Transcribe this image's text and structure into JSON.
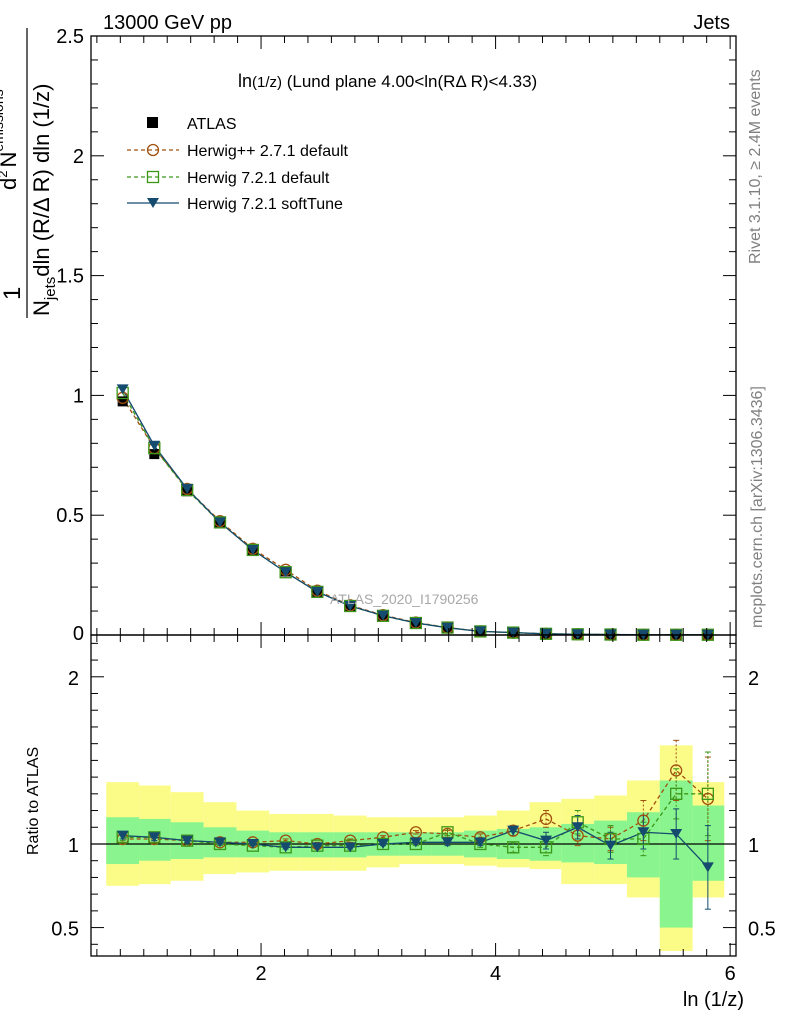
{
  "header": {
    "left": "13000 GeV pp",
    "right": "Jets"
  },
  "side_text": {
    "rivet": "Rivet 3.1.10, ≥ 2.4M events",
    "mcplots": "mcplots.cern.ch [arXiv:1306.3436]"
  },
  "watermark": "ATLAS_2020_I1790256",
  "chart_data": [
    {
      "type": "line",
      "panel": "main",
      "title": "ln(1/z) (Lund plane 4.00<ln(RΔ R)<4.33)",
      "title_parts": {
        "main": "ln",
        "small": "(1/z)",
        "rest": " (Lund plane 4.00<ln(RΔ R)<4.33)"
      },
      "ylabel": "1/Njets d²Nemissions/dln(R/Δ R) dln(1/z)",
      "ylabel_parts": {
        "one": "1",
        "d2": "d",
        "two": "2",
        "N": "N",
        "emissions": "emissions",
        "Nj": "N",
        "jets": "jets",
        "den": "dln (R/Δ R) dln (1/z)"
      },
      "xlim": [
        0.55,
        6.05
      ],
      "ylim": [
        0,
        2.5
      ],
      "yticks": [
        "0",
        "0.5",
        "1",
        "1.5",
        "2",
        "2.5"
      ],
      "x": [
        0.82,
        1.09,
        1.37,
        1.65,
        1.93,
        2.21,
        2.48,
        2.76,
        3.04,
        3.32,
        3.59,
        3.87,
        4.15,
        4.43,
        4.7,
        4.98,
        5.26,
        5.54,
        5.81
      ],
      "series": [
        {
          "name": "ATLAS",
          "style": "data",
          "color": "#000000",
          "values": [
            0.975,
            0.755,
            0.6,
            0.47,
            0.355,
            0.265,
            0.18,
            0.12,
            0.08,
            0.05,
            0.03,
            0.015,
            0.01,
            0.005,
            0.003,
            0.002,
            0.001,
            0.001,
            0.001
          ]
        },
        {
          "name": "Herwig++ 2.7.1 default",
          "style": "circle",
          "color": "#a0500f",
          "values": [
            0.99,
            0.78,
            0.61,
            0.475,
            0.36,
            0.272,
            0.185,
            0.124,
            0.083,
            0.052,
            0.031,
            0.015,
            0.01,
            0.005,
            0.003,
            0.002,
            0.001,
            0.001,
            0.001
          ]
        },
        {
          "name": "Herwig 7.2.1 default",
          "style": "square",
          "color": "#3c9618",
          "values": [
            1.01,
            0.78,
            0.605,
            0.47,
            0.355,
            0.262,
            0.18,
            0.121,
            0.08,
            0.05,
            0.031,
            0.015,
            0.01,
            0.005,
            0.003,
            0.002,
            0.001,
            0.001,
            0.001
          ]
        },
        {
          "name": "Herwig 7.2.1 softTune",
          "style": "triangle",
          "color": "#154b6e",
          "values": [
            1.025,
            0.79,
            0.61,
            0.47,
            0.355,
            0.262,
            0.18,
            0.121,
            0.081,
            0.05,
            0.03,
            0.015,
            0.01,
            0.005,
            0.003,
            0.002,
            0.001,
            0.001,
            0.001
          ]
        }
      ]
    },
    {
      "type": "line",
      "panel": "ratio",
      "ylabel": "Ratio to ATLAS",
      "xlabel": "ln (1/z)",
      "xlim": [
        0.55,
        6.05
      ],
      "ylim": [
        0.33,
        2.25
      ],
      "xticks": [
        "2",
        "4",
        "6"
      ],
      "yticks": [
        "0.5",
        "1",
        "2"
      ],
      "band_edges": [
        0.68,
        0.96,
        1.23,
        1.51,
        1.79,
        2.07,
        2.34,
        2.62,
        2.9,
        3.18,
        3.45,
        3.73,
        4.01,
        4.29,
        4.56,
        4.84,
        5.12,
        5.4,
        5.68,
        5.95
      ],
      "band_stat": {
        "name": "stat",
        "color": "#8af58e",
        "lo": [
          0.88,
          0.9,
          0.91,
          0.92,
          0.92,
          0.92,
          0.92,
          0.92,
          0.93,
          0.93,
          0.93,
          0.92,
          0.91,
          0.9,
          0.89,
          0.88,
          0.8,
          0.5,
          0.78
        ],
        "hi": [
          1.16,
          1.15,
          1.13,
          1.1,
          1.08,
          1.07,
          1.07,
          1.07,
          1.07,
          1.07,
          1.07,
          1.08,
          1.09,
          1.1,
          1.12,
          1.14,
          1.19,
          1.38,
          1.23
        ]
      },
      "band_total": {
        "name": "stat+syst",
        "color": "#fbfc88",
        "lo": [
          0.75,
          0.76,
          0.78,
          0.82,
          0.83,
          0.84,
          0.84,
          0.84,
          0.86,
          0.88,
          0.88,
          0.87,
          0.86,
          0.85,
          0.76,
          0.76,
          0.68,
          0.36,
          0.68
        ],
        "hi": [
          1.37,
          1.35,
          1.31,
          1.25,
          1.2,
          1.18,
          1.18,
          1.17,
          1.16,
          1.16,
          1.16,
          1.17,
          1.2,
          1.25,
          1.27,
          1.29,
          1.38,
          1.59,
          1.37
        ]
      },
      "x": [
        0.82,
        1.09,
        1.37,
        1.65,
        1.93,
        2.21,
        2.48,
        2.76,
        3.04,
        3.32,
        3.59,
        3.87,
        4.15,
        4.43,
        4.7,
        4.98,
        5.26,
        5.54,
        5.81
      ],
      "series": [
        {
          "name": "Herwig++ 2.7.1 default",
          "style": "circle",
          "color": "#a0500f",
          "values": [
            1.03,
            1.03,
            1.02,
            1.01,
            1.01,
            1.02,
            1.0,
            1.02,
            1.04,
            1.07,
            1.06,
            1.04,
            1.08,
            1.15,
            1.05,
            1.03,
            1.14,
            1.44,
            1.27
          ],
          "err": [
            0.02,
            0.02,
            0.01,
            0.01,
            0.01,
            0.01,
            0.01,
            0.01,
            0.01,
            0.01,
            0.02,
            0.02,
            0.03,
            0.05,
            0.06,
            0.07,
            0.12,
            0.18,
            0.25
          ]
        },
        {
          "name": "Herwig 7.2.1 default",
          "style": "square",
          "color": "#3c9618",
          "values": [
            1.04,
            1.04,
            1.02,
            1.0,
            0.99,
            0.98,
            0.99,
            0.99,
            1.0,
            1.0,
            1.07,
            1.0,
            0.98,
            0.98,
            1.13,
            1.03,
            1.03,
            1.3,
            1.3
          ],
          "err": [
            0.02,
            0.02,
            0.01,
            0.01,
            0.01,
            0.01,
            0.01,
            0.01,
            0.01,
            0.01,
            0.02,
            0.02,
            0.03,
            0.05,
            0.07,
            0.08,
            0.1,
            0.15,
            0.25
          ]
        },
        {
          "name": "Herwig 7.2.1 softTune",
          "style": "triangle",
          "color": "#154b6e",
          "values": [
            1.05,
            1.04,
            1.02,
            1.01,
            1.0,
            0.98,
            0.98,
            0.98,
            1.0,
            1.01,
            1.01,
            1.01,
            1.08,
            1.02,
            1.1,
            0.99,
            1.07,
            1.06,
            0.86
          ],
          "err": [
            0.02,
            0.02,
            0.01,
            0.01,
            0.01,
            0.01,
            0.01,
            0.01,
            0.01,
            0.01,
            0.02,
            0.02,
            0.03,
            0.05,
            0.07,
            0.08,
            0.1,
            0.15,
            0.25
          ]
        }
      ]
    }
  ]
}
